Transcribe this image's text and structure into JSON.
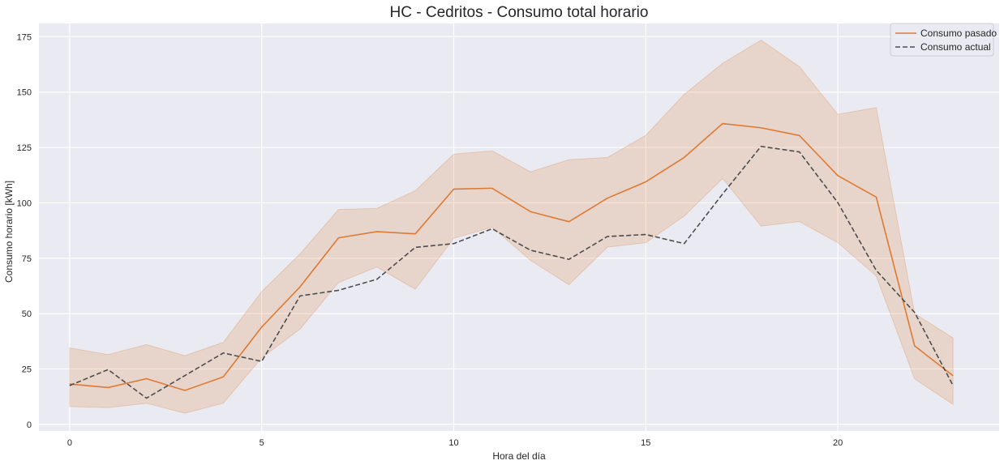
{
  "chart_data": {
    "type": "line",
    "title": "HC - Cedritos - Consumo total horario",
    "xlabel": "Hora del día",
    "ylabel": "Consumo horario [kWh]",
    "xlim": [
      -0.8,
      24.2
    ],
    "ylim": [
      -3,
      181
    ],
    "x_ticks": [
      0,
      5,
      10,
      15,
      20
    ],
    "y_ticks": [
      0,
      25,
      50,
      75,
      100,
      125,
      150,
      175
    ],
    "grid": true,
    "legend_position": "top-right",
    "x": [
      0,
      1,
      2,
      3,
      4,
      5,
      6,
      7,
      8,
      9,
      10,
      11,
      12,
      13,
      14,
      15,
      16,
      17,
      18,
      19,
      20,
      21,
      22,
      23
    ],
    "series": [
      {
        "name": "Consumo pasado",
        "style": "solid",
        "color": "#dd7b34",
        "values": [
          18.2,
          16.6,
          20.6,
          15.3,
          21.4,
          43.9,
          62.1,
          84.2,
          87.0,
          86.0,
          106.2,
          106.6,
          96.0,
          91.5,
          102.1,
          109.5,
          120.5,
          135.8,
          133.9,
          130.4,
          112.3,
          102.6,
          35.4,
          21.9
        ],
        "ci_lower": [
          8.0,
          7.5,
          9.5,
          5.0,
          9.5,
          30.0,
          43.0,
          64.0,
          71.0,
          61.0,
          84.0,
          89.0,
          74.0,
          63.0,
          80.0,
          82.0,
          94.0,
          111.0,
          89.5,
          91.5,
          82.0,
          67.0,
          20.5,
          9.0
        ],
        "ci_upper": [
          34.5,
          31.5,
          36.0,
          31.0,
          37.0,
          60.0,
          77.0,
          97.0,
          97.5,
          105.5,
          122.0,
          123.5,
          114.0,
          119.5,
          120.5,
          130.5,
          149.0,
          163.0,
          173.5,
          161.5,
          140.0,
          143.0,
          50.0,
          39.0
        ]
      },
      {
        "name": "Consumo actual",
        "style": "dashed",
        "color": "#4d4d4d",
        "values": [
          17.5,
          24.7,
          11.8,
          22.0,
          32.2,
          28.4,
          58.0,
          60.5,
          65.5,
          79.9,
          81.6,
          88.3,
          78.6,
          74.5,
          84.8,
          85.7,
          81.6,
          104.0,
          125.5,
          123.0,
          100.1,
          69.5,
          50.5,
          17.5
        ]
      }
    ]
  },
  "colors": {
    "plot_background": "#eaeaf2",
    "grid": "#ffffff",
    "ci_fill": "#dd7b34"
  }
}
